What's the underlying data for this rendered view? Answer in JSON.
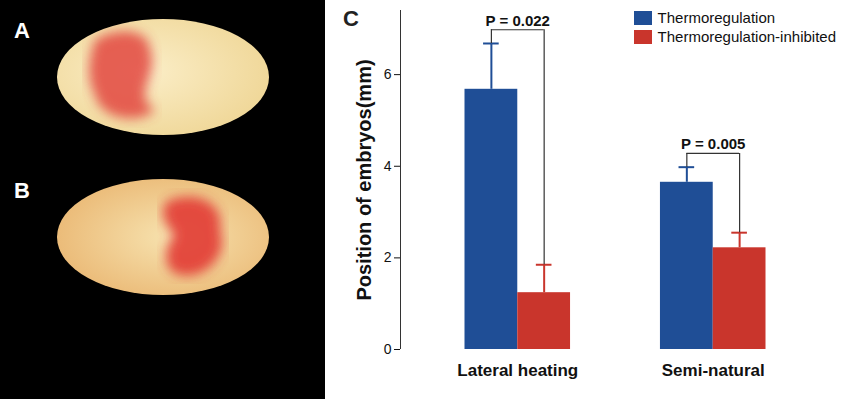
{
  "panel_labels": [
    "A",
    "B",
    "C"
  ],
  "chart_data": {
    "type": "bar",
    "categories": [
      "Lateral heating",
      "Semi-natural"
    ],
    "y_label": "Position of embryos(mm)",
    "ylim": [
      0,
      7.4
    ],
    "yticks": [
      0,
      2,
      4,
      6
    ],
    "legend": "top-right",
    "series": [
      {
        "name": "Thermoregulation",
        "color": "#1f4e96",
        "values": [
          5.68,
          3.65
        ],
        "error": [
          1.0,
          0.33
        ]
      },
      {
        "name": "Thermoregulation-inhibited",
        "color": "#c9352c",
        "values": [
          1.24,
          2.22
        ],
        "error": [
          0.61,
          0.33
        ]
      }
    ],
    "annotations": [
      {
        "text": "P = 0.022",
        "category": "Lateral heating",
        "y": 6.98
      },
      {
        "text": "P = 0.005",
        "category": "Semi-natural",
        "y": 4.28
      }
    ]
  }
}
